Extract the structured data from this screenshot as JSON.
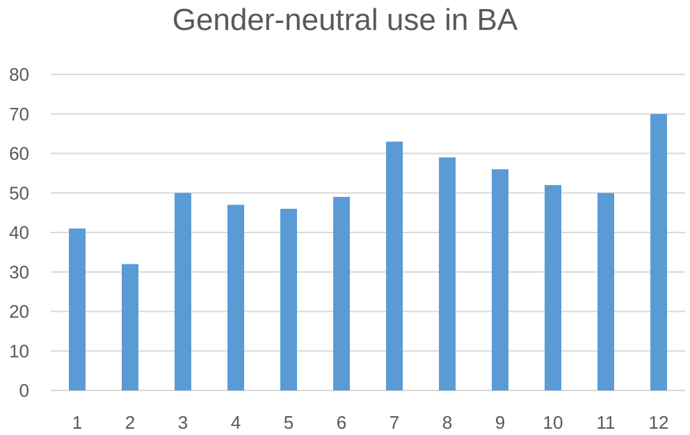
{
  "chart_data": {
    "type": "bar",
    "title": "Gender-neutral use in BA",
    "xlabel": "",
    "ylabel": "",
    "categories": [
      "1",
      "2",
      "3",
      "4",
      "5",
      "6",
      "7",
      "8",
      "9",
      "10",
      "11",
      "12"
    ],
    "values": [
      41,
      32,
      50,
      47,
      46,
      49,
      63,
      59,
      56,
      52,
      50,
      70
    ],
    "ylim": [
      0,
      80
    ],
    "yticks": [
      "0",
      "10",
      "20",
      "30",
      "40",
      "50",
      "60",
      "70",
      "80"
    ],
    "grid": true,
    "legend": "none",
    "colors": {
      "bar": "#5b9bd5",
      "grid": "#d9d9d9",
      "text": "#595959"
    }
  }
}
